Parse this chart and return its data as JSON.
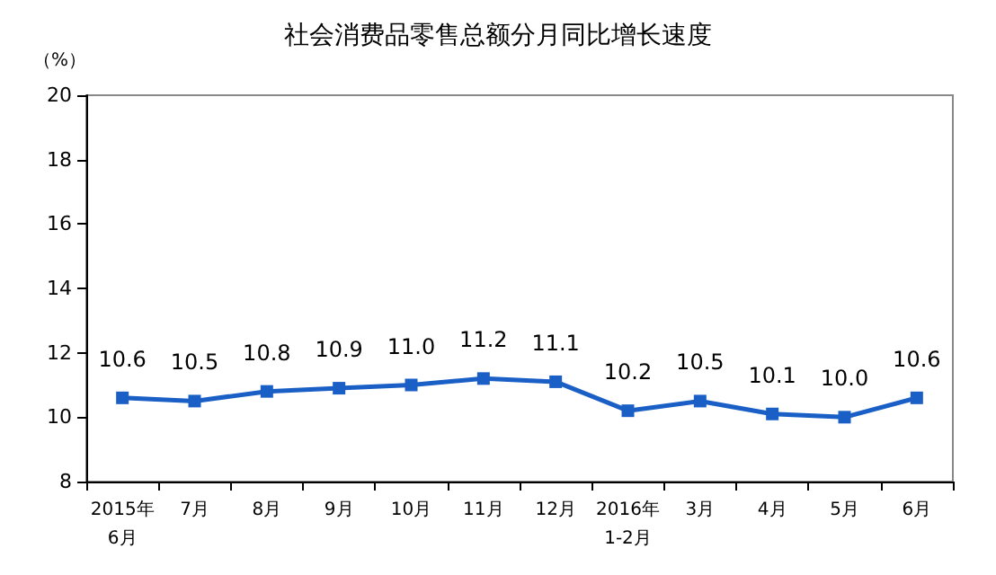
{
  "chart_data": {
    "type": "line",
    "title": "社会消费品零售总额分月同比增长速度",
    "ylabel": "（%）",
    "categories": [
      "2015年\n6月",
      "7月",
      "8月",
      "9月",
      "10月",
      "11月",
      "12月",
      "2016年\n1-2月",
      "3月",
      "4月",
      "5月",
      "6月"
    ],
    "series": [
      {
        "color": "#1a5fc6",
        "values": [
          10.6,
          10.5,
          10.8,
          10.9,
          11.0,
          11.2,
          11.1,
          10.2,
          10.5,
          10.1,
          10.0,
          10.6
        ],
        "value_labels": [
          "10.6",
          "10.5",
          "10.8",
          "10.9",
          "11.0",
          "11.2",
          "11.1",
          "10.2",
          "10.5",
          "10.1",
          "10.0",
          "10.6"
        ]
      }
    ],
    "ylim": [
      8,
      20
    ],
    "yticks": [
      8,
      10,
      12,
      14,
      16,
      18,
      20
    ],
    "grid": false,
    "marker": "square",
    "line_style": "solid"
  }
}
